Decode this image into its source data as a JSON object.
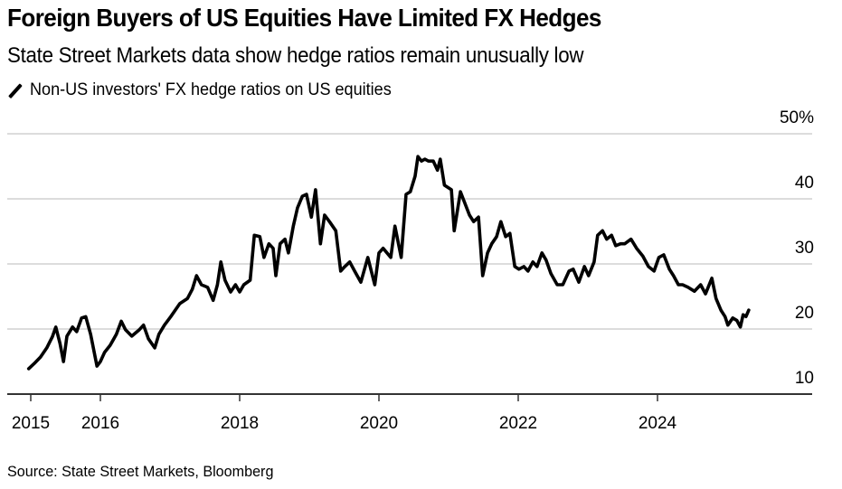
{
  "chart_data": {
    "type": "line",
    "title": "Foreign Buyers of US Equities Have Limited FX Hedges",
    "subtitle": "State Street Markets data show hedge ratios remain unusually low",
    "xlabel": "",
    "ylabel": "",
    "y_unit": "%",
    "ylim": [
      10,
      50
    ],
    "xlim": [
      2014.67,
      2026.2
    ],
    "y_ticks": [
      {
        "value": 50,
        "label": "50%"
      },
      {
        "value": 40,
        "label": "40"
      },
      {
        "value": 30,
        "label": "30"
      },
      {
        "value": 20,
        "label": "20"
      },
      {
        "value": 10,
        "label": "10"
      }
    ],
    "x_ticks": [
      {
        "value": 2015,
        "label": "2015"
      },
      {
        "value": 2016,
        "label": "2016"
      },
      {
        "value": 2018,
        "label": "2018"
      },
      {
        "value": 2020,
        "label": "2020"
      },
      {
        "value": 2022,
        "label": "2022"
      },
      {
        "value": 2024,
        "label": "2024"
      }
    ],
    "grid": true,
    "y_axis_position": "right",
    "legend_placement": "top-left",
    "series": [
      {
        "name": "Non-US investors' FX hedge ratios on US equities",
        "color": "#000000",
        "points": [
          [
            2014.97,
            13.9
          ],
          [
            2015.05,
            14.7
          ],
          [
            2015.14,
            15.7
          ],
          [
            2015.23,
            17.1
          ],
          [
            2015.31,
            18.8
          ],
          [
            2015.36,
            20.3
          ],
          [
            2015.42,
            17.8
          ],
          [
            2015.47,
            15.0
          ],
          [
            2015.52,
            18.9
          ],
          [
            2015.6,
            20.3
          ],
          [
            2015.66,
            19.6
          ],
          [
            2015.73,
            21.7
          ],
          [
            2015.79,
            21.9
          ],
          [
            2015.86,
            19.2
          ],
          [
            2015.95,
            14.3
          ],
          [
            2016.0,
            15.0
          ],
          [
            2016.06,
            16.4
          ],
          [
            2016.14,
            17.5
          ],
          [
            2016.23,
            19.2
          ],
          [
            2016.3,
            21.2
          ],
          [
            2016.36,
            19.9
          ],
          [
            2016.45,
            18.9
          ],
          [
            2016.56,
            19.9
          ],
          [
            2016.62,
            20.6
          ],
          [
            2016.69,
            18.5
          ],
          [
            2016.78,
            17.1
          ],
          [
            2016.84,
            19.2
          ],
          [
            2016.92,
            20.6
          ],
          [
            2017.01,
            21.9
          ],
          [
            2017.14,
            23.9
          ],
          [
            2017.25,
            24.7
          ],
          [
            2017.32,
            26.1
          ],
          [
            2017.38,
            28.2
          ],
          [
            2017.45,
            26.8
          ],
          [
            2017.54,
            26.4
          ],
          [
            2017.62,
            24.4
          ],
          [
            2017.68,
            26.8
          ],
          [
            2017.73,
            30.3
          ],
          [
            2017.79,
            27.5
          ],
          [
            2017.87,
            25.7
          ],
          [
            2017.94,
            26.8
          ],
          [
            2018.0,
            25.7
          ],
          [
            2018.06,
            26.8
          ],
          [
            2018.15,
            27.5
          ],
          [
            2018.21,
            34.4
          ],
          [
            2018.29,
            34.2
          ],
          [
            2018.35,
            31.0
          ],
          [
            2018.42,
            33.1
          ],
          [
            2018.48,
            32.4
          ],
          [
            2018.52,
            28.2
          ],
          [
            2018.58,
            33.1
          ],
          [
            2018.65,
            33.8
          ],
          [
            2018.7,
            31.7
          ],
          [
            2018.77,
            35.8
          ],
          [
            2018.83,
            38.6
          ],
          [
            2018.9,
            40.4
          ],
          [
            2018.96,
            40.7
          ],
          [
            2019.03,
            37.2
          ],
          [
            2019.09,
            41.4
          ],
          [
            2019.16,
            33.1
          ],
          [
            2019.22,
            37.5
          ],
          [
            2019.29,
            36.5
          ],
          [
            2019.38,
            35.1
          ],
          [
            2019.45,
            28.9
          ],
          [
            2019.51,
            29.6
          ],
          [
            2019.58,
            30.3
          ],
          [
            2019.65,
            28.9
          ],
          [
            2019.74,
            27.2
          ],
          [
            2019.84,
            31.0
          ],
          [
            2019.94,
            26.8
          ],
          [
            2020.0,
            31.7
          ],
          [
            2020.06,
            32.4
          ],
          [
            2020.17,
            31.0
          ],
          [
            2020.23,
            35.8
          ],
          [
            2020.32,
            31.0
          ],
          [
            2020.39,
            40.7
          ],
          [
            2020.45,
            41.1
          ],
          [
            2020.52,
            43.5
          ],
          [
            2020.56,
            46.5
          ],
          [
            2020.61,
            45.8
          ],
          [
            2020.66,
            46.1
          ],
          [
            2020.71,
            45.8
          ],
          [
            2020.78,
            45.8
          ],
          [
            2020.84,
            44.4
          ],
          [
            2020.88,
            46.1
          ],
          [
            2020.94,
            42.1
          ],
          [
            2021.04,
            41.4
          ],
          [
            2021.08,
            35.1
          ],
          [
            2021.17,
            41.1
          ],
          [
            2021.3,
            37.5
          ],
          [
            2021.36,
            36.5
          ],
          [
            2021.43,
            37.2
          ],
          [
            2021.49,
            28.2
          ],
          [
            2021.56,
            31.7
          ],
          [
            2021.62,
            33.1
          ],
          [
            2021.69,
            34.2
          ],
          [
            2021.75,
            36.5
          ],
          [
            2021.82,
            34.2
          ],
          [
            2021.88,
            34.7
          ],
          [
            2021.95,
            29.6
          ],
          [
            2022.01,
            29.2
          ],
          [
            2022.08,
            29.6
          ],
          [
            2022.14,
            28.9
          ],
          [
            2022.21,
            30.3
          ],
          [
            2022.27,
            29.6
          ],
          [
            2022.34,
            31.7
          ],
          [
            2022.4,
            30.6
          ],
          [
            2022.47,
            28.5
          ],
          [
            2022.56,
            26.8
          ],
          [
            2022.64,
            26.8
          ],
          [
            2022.73,
            28.9
          ],
          [
            2022.79,
            29.2
          ],
          [
            2022.87,
            27.2
          ],
          [
            2022.95,
            29.6
          ],
          [
            2023.01,
            28.2
          ],
          [
            2023.09,
            30.3
          ],
          [
            2023.14,
            34.4
          ],
          [
            2023.21,
            35.1
          ],
          [
            2023.27,
            33.8
          ],
          [
            2023.34,
            34.4
          ],
          [
            2023.4,
            32.8
          ],
          [
            2023.47,
            33.1
          ],
          [
            2023.53,
            33.1
          ],
          [
            2023.62,
            33.8
          ],
          [
            2023.7,
            32.4
          ],
          [
            2023.79,
            31.2
          ],
          [
            2023.87,
            29.6
          ],
          [
            2023.95,
            28.9
          ],
          [
            2024.02,
            31.0
          ],
          [
            2024.09,
            31.4
          ],
          [
            2024.17,
            29.2
          ],
          [
            2024.23,
            28.2
          ],
          [
            2024.3,
            26.8
          ],
          [
            2024.36,
            26.8
          ],
          [
            2024.44,
            26.4
          ],
          [
            2024.53,
            25.8
          ],
          [
            2024.62,
            26.8
          ],
          [
            2024.69,
            25.4
          ],
          [
            2024.78,
            27.8
          ],
          [
            2024.84,
            24.7
          ],
          [
            2024.91,
            22.9
          ],
          [
            2024.97,
            21.9
          ],
          [
            2025.01,
            20.6
          ],
          [
            2025.08,
            21.7
          ],
          [
            2025.14,
            21.3
          ],
          [
            2025.19,
            20.3
          ],
          [
            2025.23,
            22.2
          ],
          [
            2025.27,
            21.9
          ],
          [
            2025.31,
            22.9
          ]
        ]
      }
    ],
    "source": "Source: State Street Markets, Bloomberg"
  }
}
